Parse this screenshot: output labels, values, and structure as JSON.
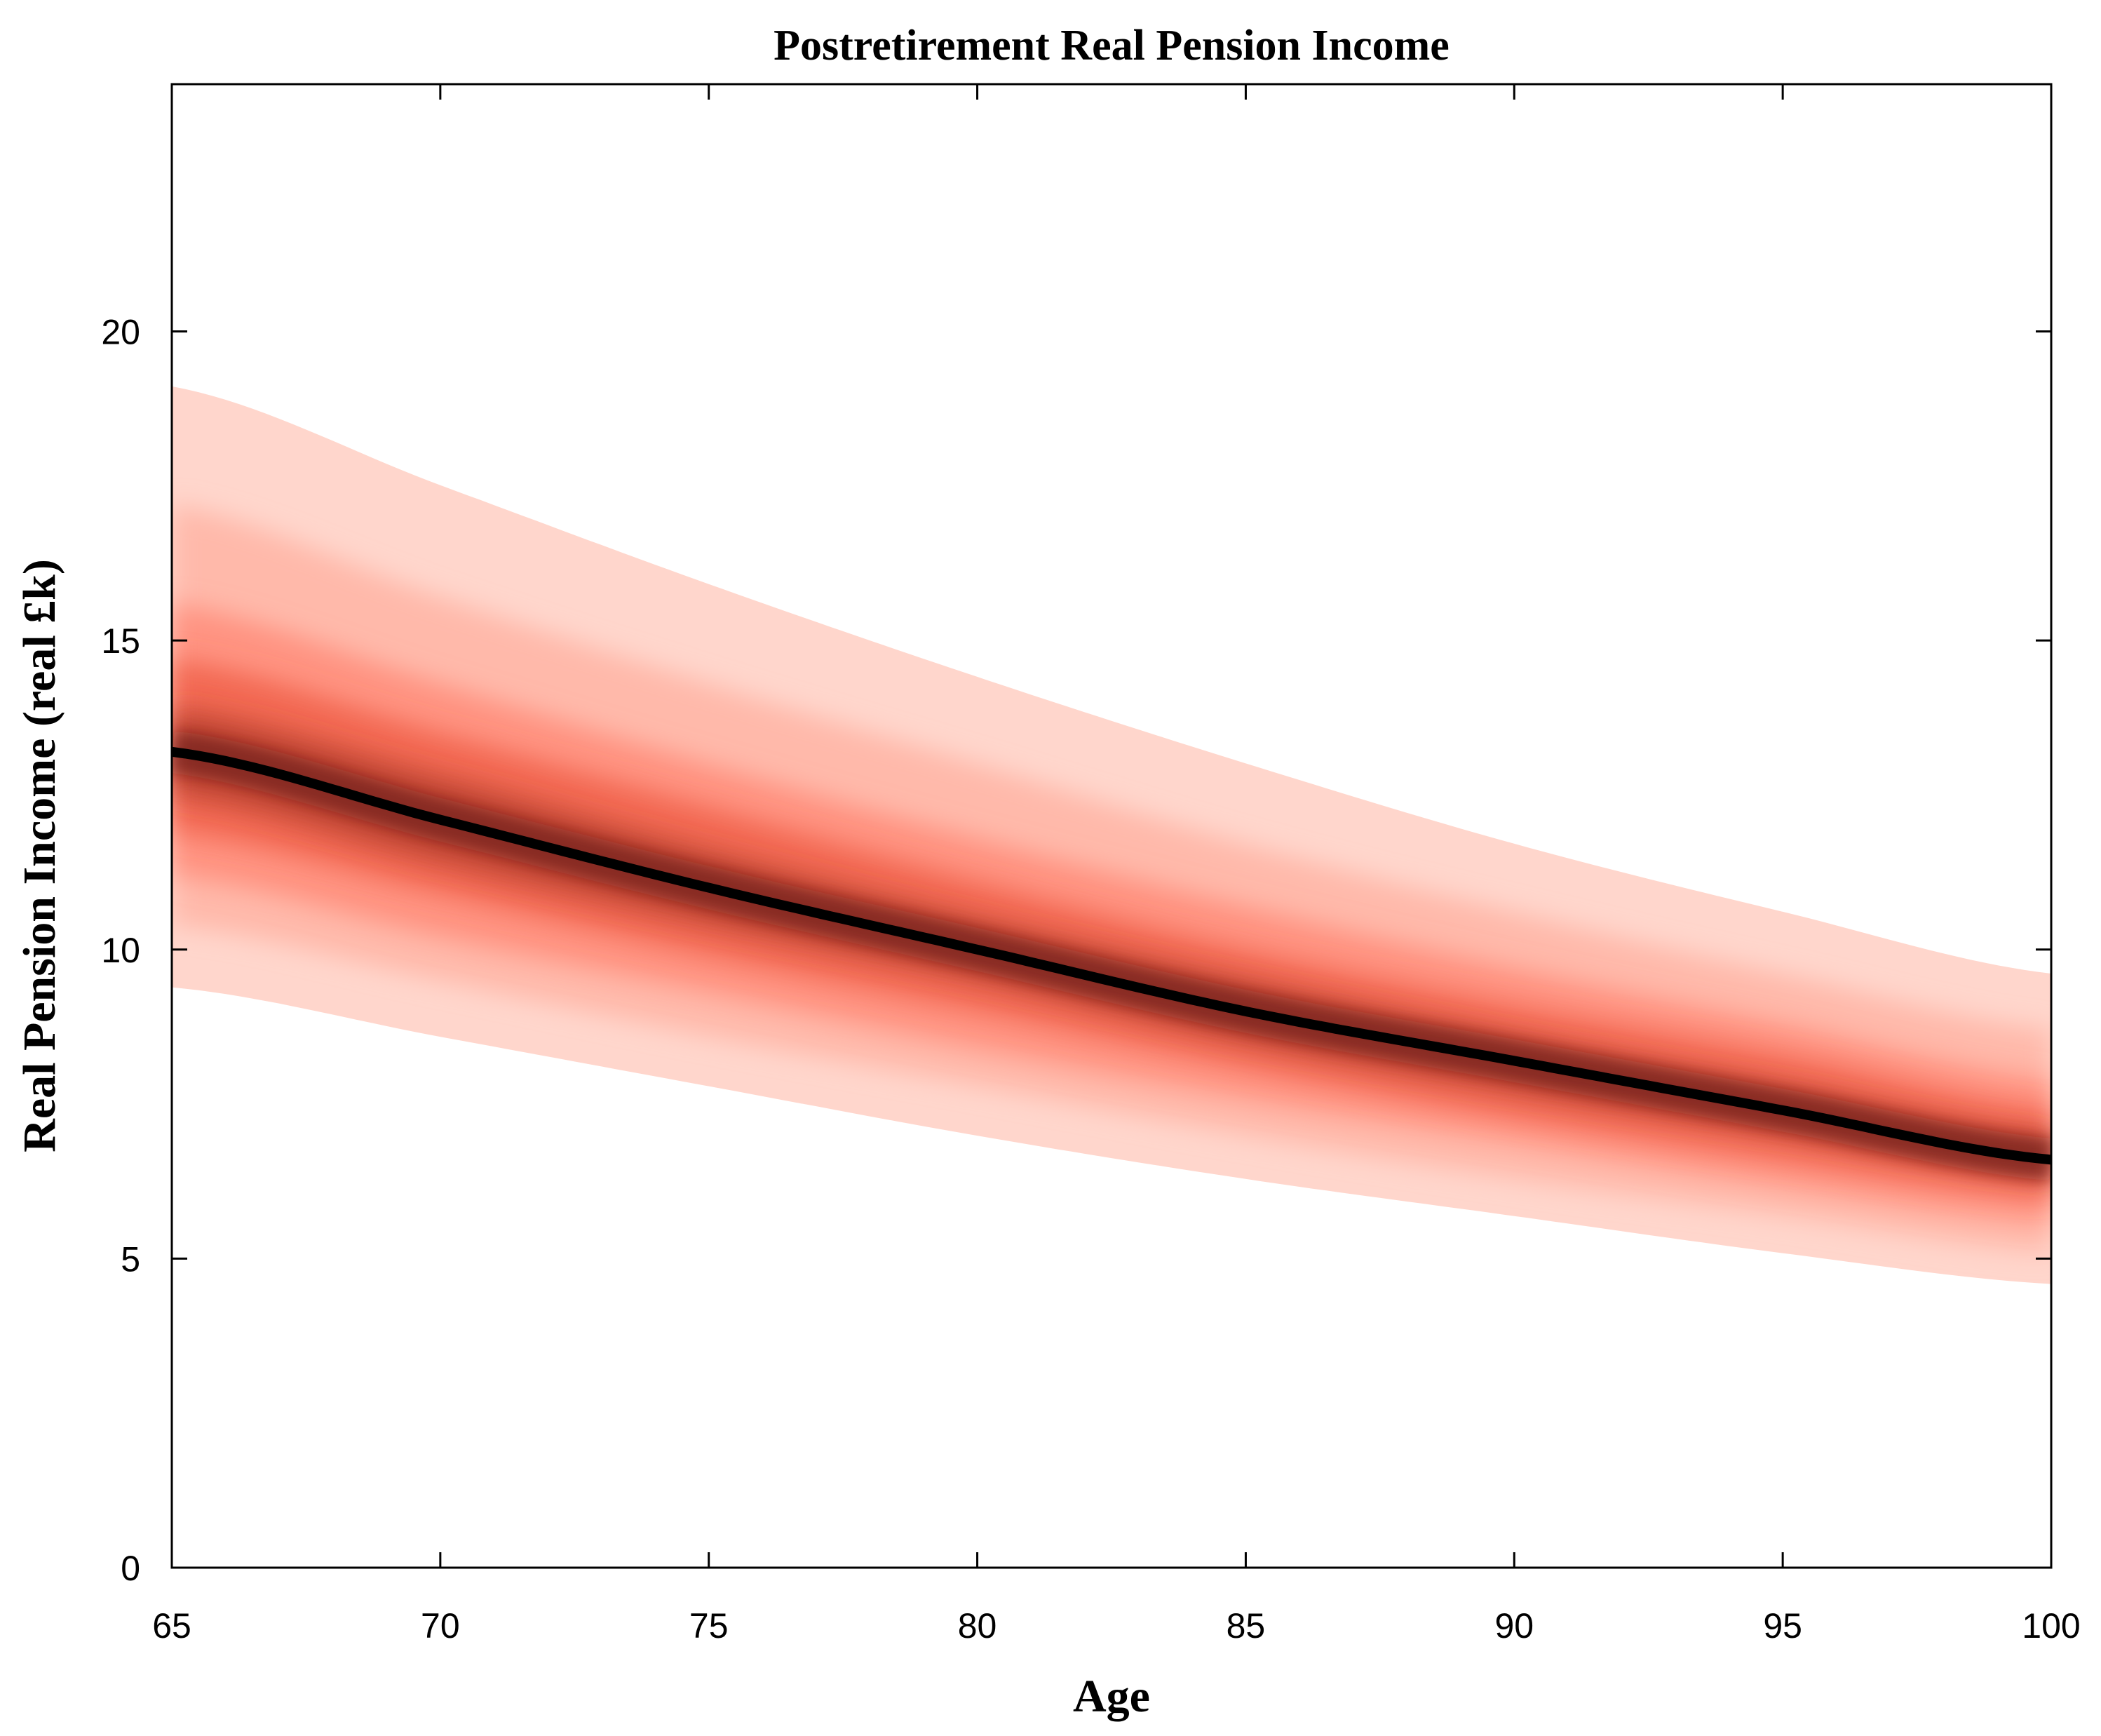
{
  "chart_data": {
    "type": "area",
    "title": "Postretirement Real Pension Income",
    "xlabel": "Age",
    "ylabel": "Real Pension Income (real £k)",
    "xlim": [
      65,
      100
    ],
    "ylim": [
      0,
      24
    ],
    "xticks": [
      65,
      70,
      75,
      80,
      85,
      90,
      95,
      100
    ],
    "yticks": [
      0,
      5,
      10,
      15,
      20
    ],
    "grid": false,
    "box": true,
    "x": [
      65,
      70,
      75,
      80,
      85,
      90,
      95,
      100
    ],
    "median": [
      13.2,
      12.1,
      11.0,
      10.0,
      9.0,
      8.2,
      7.4,
      6.6
    ],
    "band_levels": [
      {
        "lower": [
          9.4,
          8.6,
          7.8,
          7.0,
          6.3,
          5.7,
          5.1,
          4.6
        ],
        "upper": [
          19.1,
          17.5,
          15.9,
          14.4,
          13.0,
          11.7,
          10.6,
          9.6
        ]
      },
      {
        "lower": [
          10.4,
          9.5,
          8.6,
          7.8,
          7.0,
          6.3,
          5.7,
          5.1
        ],
        "upper": [
          17.2,
          15.7,
          14.3,
          13.0,
          11.7,
          10.6,
          9.6,
          8.7
        ]
      },
      {
        "lower": [
          11.2,
          10.2,
          9.3,
          8.4,
          7.6,
          6.9,
          6.2,
          5.6
        ],
        "upper": [
          15.6,
          14.3,
          13.0,
          11.8,
          10.7,
          9.7,
          8.8,
          7.9
        ]
      },
      {
        "lower": [
          11.9,
          10.9,
          9.9,
          9.0,
          8.1,
          7.3,
          6.6,
          6.0
        ],
        "upper": [
          14.7,
          13.5,
          12.3,
          11.1,
          10.0,
          9.1,
          8.3,
          7.4
        ]
      },
      {
        "lower": [
          12.5,
          11.4,
          10.4,
          9.5,
          8.5,
          7.7,
          7.0,
          6.3
        ],
        "upper": [
          13.9,
          12.8,
          11.6,
          10.5,
          9.5,
          8.6,
          7.8,
          7.0
        ]
      }
    ],
    "band_colors": [
      "#ffd6cc",
      "#ffb4a4",
      "#ff8c7a",
      "#f0604a",
      "#b8402f"
    ],
    "median_color": "#000000",
    "legend": "none"
  }
}
